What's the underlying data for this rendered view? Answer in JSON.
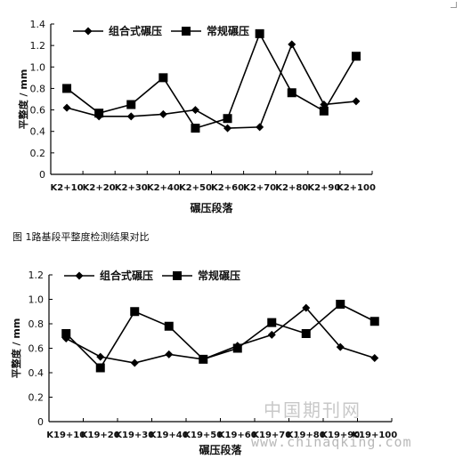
{
  "figure1": {
    "caption": "图 1路基段平整度检测结果对比"
  },
  "watermark": {
    "cn": "中国期刊网",
    "url": "www.chinaqking.com"
  },
  "chart_data": [
    {
      "type": "line",
      "title": "",
      "xlabel": "碾压段落",
      "ylabel": "平整度 / mm",
      "categories": [
        "K2+10",
        "K2+20",
        "K2+30",
        "K2+40",
        "K2+50",
        "K2+60",
        "K2+70",
        "K2+80",
        "K2+90",
        "K2+100"
      ],
      "yticks": [
        "0",
        "0.2",
        "0.4",
        "0.6",
        "0.8",
        "1.0",
        "1.2",
        "1.4"
      ],
      "ylim": [
        0,
        1.4
      ],
      "legend": "top-left",
      "grid": false,
      "series": [
        {
          "name": "组合式碾压",
          "marker": "diamond",
          "values": [
            0.62,
            0.54,
            0.54,
            0.56,
            0.6,
            0.43,
            0.44,
            1.21,
            0.65,
            0.68
          ]
        },
        {
          "name": "常规碾压",
          "marker": "square",
          "values": [
            0.8,
            0.57,
            0.65,
            0.9,
            0.43,
            0.52,
            1.31,
            0.76,
            0.59,
            1.1
          ]
        }
      ]
    },
    {
      "type": "line",
      "title": "",
      "xlabel": "碾压段落",
      "ylabel": "平整度 / mm",
      "categories": [
        "K19+10",
        "K19+20",
        "K19+30",
        "K19+40",
        "K19+50",
        "K19+60",
        "K19+70",
        "K19+80",
        "K19+90",
        "K19+100"
      ],
      "yticks": [
        "0",
        "0.2",
        "0.4",
        "0.6",
        "0.8",
        "1.0",
        "1.2"
      ],
      "ylim": [
        0,
        1.2
      ],
      "legend": "top-left",
      "grid": false,
      "series": [
        {
          "name": "组合式碾压",
          "marker": "diamond",
          "values": [
            0.68,
            0.53,
            0.48,
            0.55,
            0.51,
            0.62,
            0.71,
            0.93,
            0.61,
            0.52
          ]
        },
        {
          "name": "常规碾压",
          "marker": "square",
          "values": [
            0.72,
            0.44,
            0.9,
            0.78,
            0.51,
            0.6,
            0.81,
            0.72,
            0.96,
            0.82
          ]
        }
      ]
    }
  ]
}
